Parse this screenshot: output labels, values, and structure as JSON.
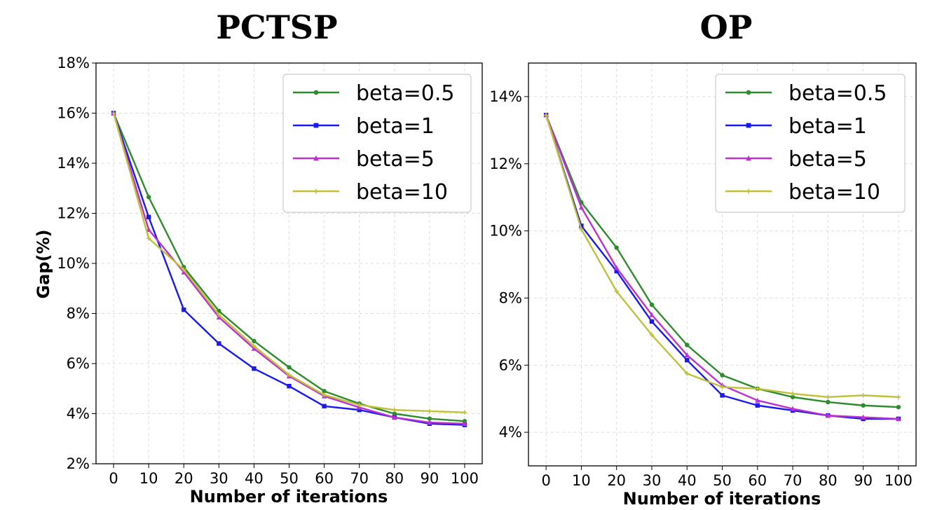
{
  "chart_data": [
    {
      "type": "line",
      "title": "PCTSP",
      "xlabel": "Number of iterations",
      "ylabel": "Gap(%)",
      "x": [
        0,
        10,
        20,
        30,
        40,
        50,
        60,
        70,
        80,
        90,
        100
      ],
      "xticks": [
        "0",
        "10",
        "20",
        "30",
        "40",
        "50",
        "60",
        "70",
        "80",
        "90",
        "100"
      ],
      "xlim": [
        -5,
        105
      ],
      "ylim": [
        2,
        18
      ],
      "yticks": [
        2,
        4,
        6,
        8,
        10,
        12,
        14,
        16,
        18
      ],
      "ytick_labels": [
        "2%",
        "4%",
        "6%",
        "8%",
        "10%",
        "12%",
        "14%",
        "16%",
        "18%"
      ],
      "grid": true,
      "legend_position": "top-right",
      "series": [
        {
          "name": "beta=0.5",
          "color": "#2e8b2e",
          "marker": "circle",
          "values": [
            16.0,
            12.65,
            9.85,
            8.1,
            6.9,
            5.85,
            4.9,
            4.4,
            4.0,
            3.8,
            3.7
          ]
        },
        {
          "name": "beta=1",
          "color": "#1a1aee",
          "marker": "square",
          "values": [
            16.0,
            11.85,
            8.15,
            6.8,
            5.8,
            5.1,
            4.3,
            4.15,
            3.85,
            3.6,
            3.55
          ]
        },
        {
          "name": "beta=5",
          "color": "#bb33cc",
          "marker": "triangle",
          "values": [
            16.0,
            11.35,
            9.65,
            7.85,
            6.6,
            5.5,
            4.7,
            4.25,
            3.85,
            3.65,
            3.6
          ]
        },
        {
          "name": "beta=10",
          "color": "#c0c03a",
          "marker": "plus",
          "values": [
            16.0,
            11.0,
            9.75,
            7.95,
            6.7,
            5.55,
            4.75,
            4.35,
            4.15,
            4.1,
            4.05
          ]
        }
      ]
    },
    {
      "type": "line",
      "title": "OP",
      "xlabel": "Number of iterations",
      "ylabel": "",
      "x": [
        0,
        10,
        20,
        30,
        40,
        50,
        60,
        70,
        80,
        90,
        100
      ],
      "xticks": [
        "0",
        "10",
        "20",
        "30",
        "40",
        "50",
        "60",
        "70",
        "80",
        "90",
        "100"
      ],
      "xlim": [
        -5,
        105
      ],
      "ylim": [
        3,
        15
      ],
      "yticks": [
        4,
        6,
        8,
        10,
        12,
        14
      ],
      "ytick_labels": [
        "4%",
        "6%",
        "8%",
        "10%",
        "12%",
        "14%"
      ],
      "grid": true,
      "legend_position": "top-right",
      "series": [
        {
          "name": "beta=0.5",
          "color": "#2e8b2e",
          "marker": "circle",
          "values": [
            13.45,
            10.85,
            9.5,
            7.8,
            6.6,
            5.7,
            5.3,
            5.05,
            4.9,
            4.8,
            4.75
          ]
        },
        {
          "name": "beta=1",
          "color": "#1a1aee",
          "marker": "square",
          "values": [
            13.45,
            10.15,
            8.8,
            7.3,
            6.15,
            5.1,
            4.8,
            4.65,
            4.5,
            4.4,
            4.4
          ]
        },
        {
          "name": "beta=5",
          "color": "#bb33cc",
          "marker": "triangle",
          "values": [
            13.45,
            10.7,
            8.9,
            7.5,
            6.3,
            5.4,
            4.95,
            4.7,
            4.5,
            4.45,
            4.4
          ]
        },
        {
          "name": "beta=10",
          "color": "#c0c03a",
          "marker": "plus",
          "values": [
            13.45,
            10.05,
            8.2,
            6.9,
            5.75,
            5.35,
            5.3,
            5.15,
            5.05,
            5.1,
            5.05
          ]
        }
      ]
    }
  ]
}
